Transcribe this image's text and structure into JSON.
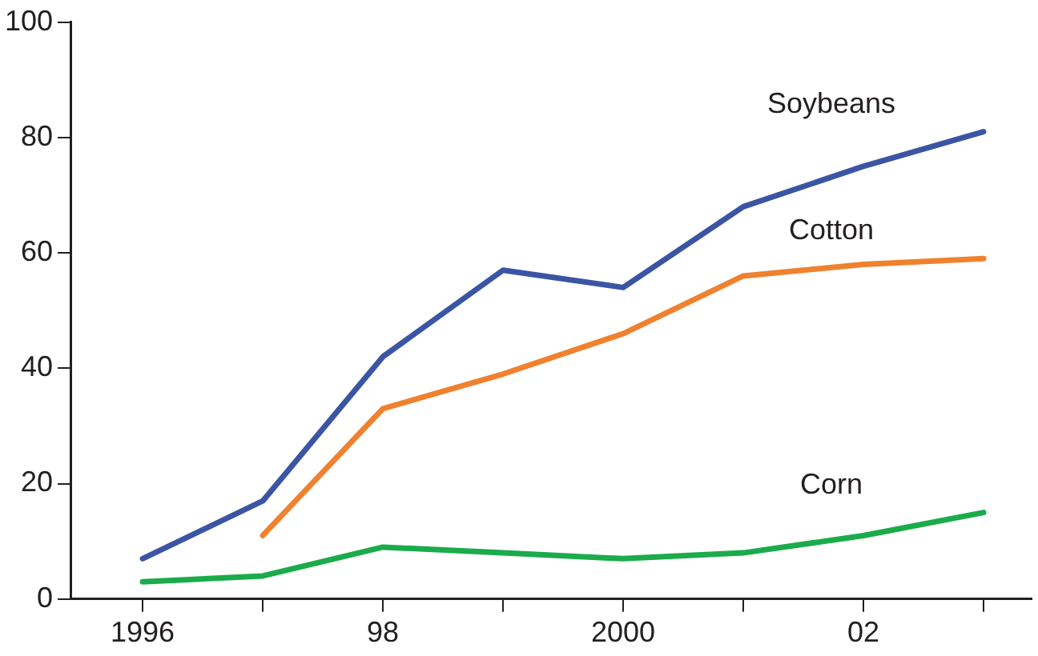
{
  "chart_data": {
    "type": "line",
    "x": [
      1996,
      1997,
      1998,
      1999,
      2000,
      2001,
      2002,
      2003
    ],
    "series": [
      {
        "name": "Soybeans",
        "color": "#3b55a4",
        "values": [
          7,
          17,
          42,
          57,
          54,
          68,
          75,
          81
        ]
      },
      {
        "name": "Cotton",
        "color": "#f0812f",
        "values": [
          null,
          11,
          33,
          39,
          46,
          56,
          58,
          59
        ]
      },
      {
        "name": "Corn",
        "color": "#1bab4b",
        "values": [
          3,
          4,
          9,
          8,
          7,
          8,
          11,
          15
        ]
      }
    ],
    "xlim": [
      1995.4,
      2003.4
    ],
    "xticks": [
      {
        "value": 1996,
        "label": "1996"
      },
      {
        "value": 1997,
        "label": null
      },
      {
        "value": 1998,
        "label": "98"
      },
      {
        "value": 1999,
        "label": null
      },
      {
        "value": 2000,
        "label": "2000"
      },
      {
        "value": 2001,
        "label": null
      },
      {
        "value": 2002,
        "label": "02"
      },
      {
        "value": 2003,
        "label": null
      }
    ],
    "ylim": [
      0,
      100
    ],
    "yticks": [
      0,
      20,
      40,
      60,
      80,
      100
    ],
    "grid": false,
    "legend": false,
    "marker": "none",
    "line_style": "solid"
  }
}
